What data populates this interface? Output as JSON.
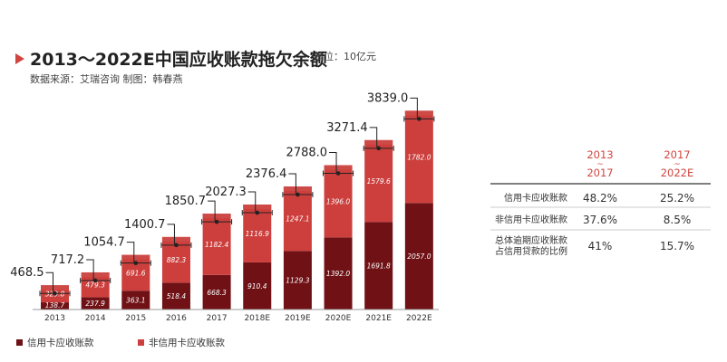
{
  "header": {
    "title": "2013～2022E中国应收账款拖欠余额",
    "unit": "单位：10亿元",
    "source": "数据来源：艾瑞咨询    制图：韩春燕"
  },
  "colors": {
    "accent": "#d0453f",
    "credit_card": "#6f1115",
    "non_credit_card": "#cc3f3c",
    "bar_top": "#cd4b48"
  },
  "chart_data": {
    "type": "bar",
    "stacked": true,
    "categories": [
      "2013",
      "2014",
      "2015",
      "2016",
      "2017",
      "2018E",
      "2019E",
      "2020E",
      "2021E",
      "2022E"
    ],
    "series": [
      {
        "name": "信用卡应收账款",
        "values": [
          138.7,
          237.9,
          363.1,
          518.4,
          668.3,
          910.4,
          1129.3,
          1392.0,
          1691.8,
          2057.0
        ],
        "labels": [
          "138.7",
          "237.9",
          "363.1",
          "518.4",
          "668.3",
          "910.4",
          "1129.3",
          "1392.0",
          "1691.8",
          "2057.0"
        ]
      },
      {
        "name": "非信用卡应收账款",
        "values": [
          329.8,
          479.3,
          691.6,
          882.3,
          1182.4,
          1116.9,
          1247.1,
          1396.0,
          1579.6,
          1782.0
        ],
        "labels": [
          "329.8",
          "479.3",
          "691.6",
          "882.3",
          "1182.4",
          "1116.9",
          "1247.1",
          "1396.0",
          "1579.6",
          "1782.0"
        ]
      }
    ],
    "totals": [
      468.5,
      717.2,
      1054.7,
      1400.7,
      1850.7,
      2027.3,
      2376.4,
      2788.0,
      3271.4,
      3839.0
    ],
    "total_labels": [
      "468.5",
      "717.2",
      "1054.7",
      "1400.7",
      "1850.7",
      "2027.3",
      "2376.4",
      "2788.0",
      "3271.4",
      "3839.0"
    ],
    "ylim": [
      0,
      4300
    ],
    "legend_position": "bottom-left",
    "grid": false
  },
  "table": {
    "headers": [
      {
        "top": "2013",
        "mid": "~",
        "bottom": "2017"
      },
      {
        "top": "2017",
        "mid": "~",
        "bottom": "2022E"
      }
    ],
    "rows": [
      {
        "label": [
          "信用卡应收账款"
        ],
        "values": [
          "48.2%",
          "25.2%"
        ]
      },
      {
        "label": [
          "非信用卡应收账款"
        ],
        "values": [
          "37.6%",
          "8.5%"
        ]
      },
      {
        "label": [
          "总体逾期应收账款",
          "占信用贷款的比例"
        ],
        "values": [
          "41%",
          "15.7%"
        ]
      }
    ]
  }
}
